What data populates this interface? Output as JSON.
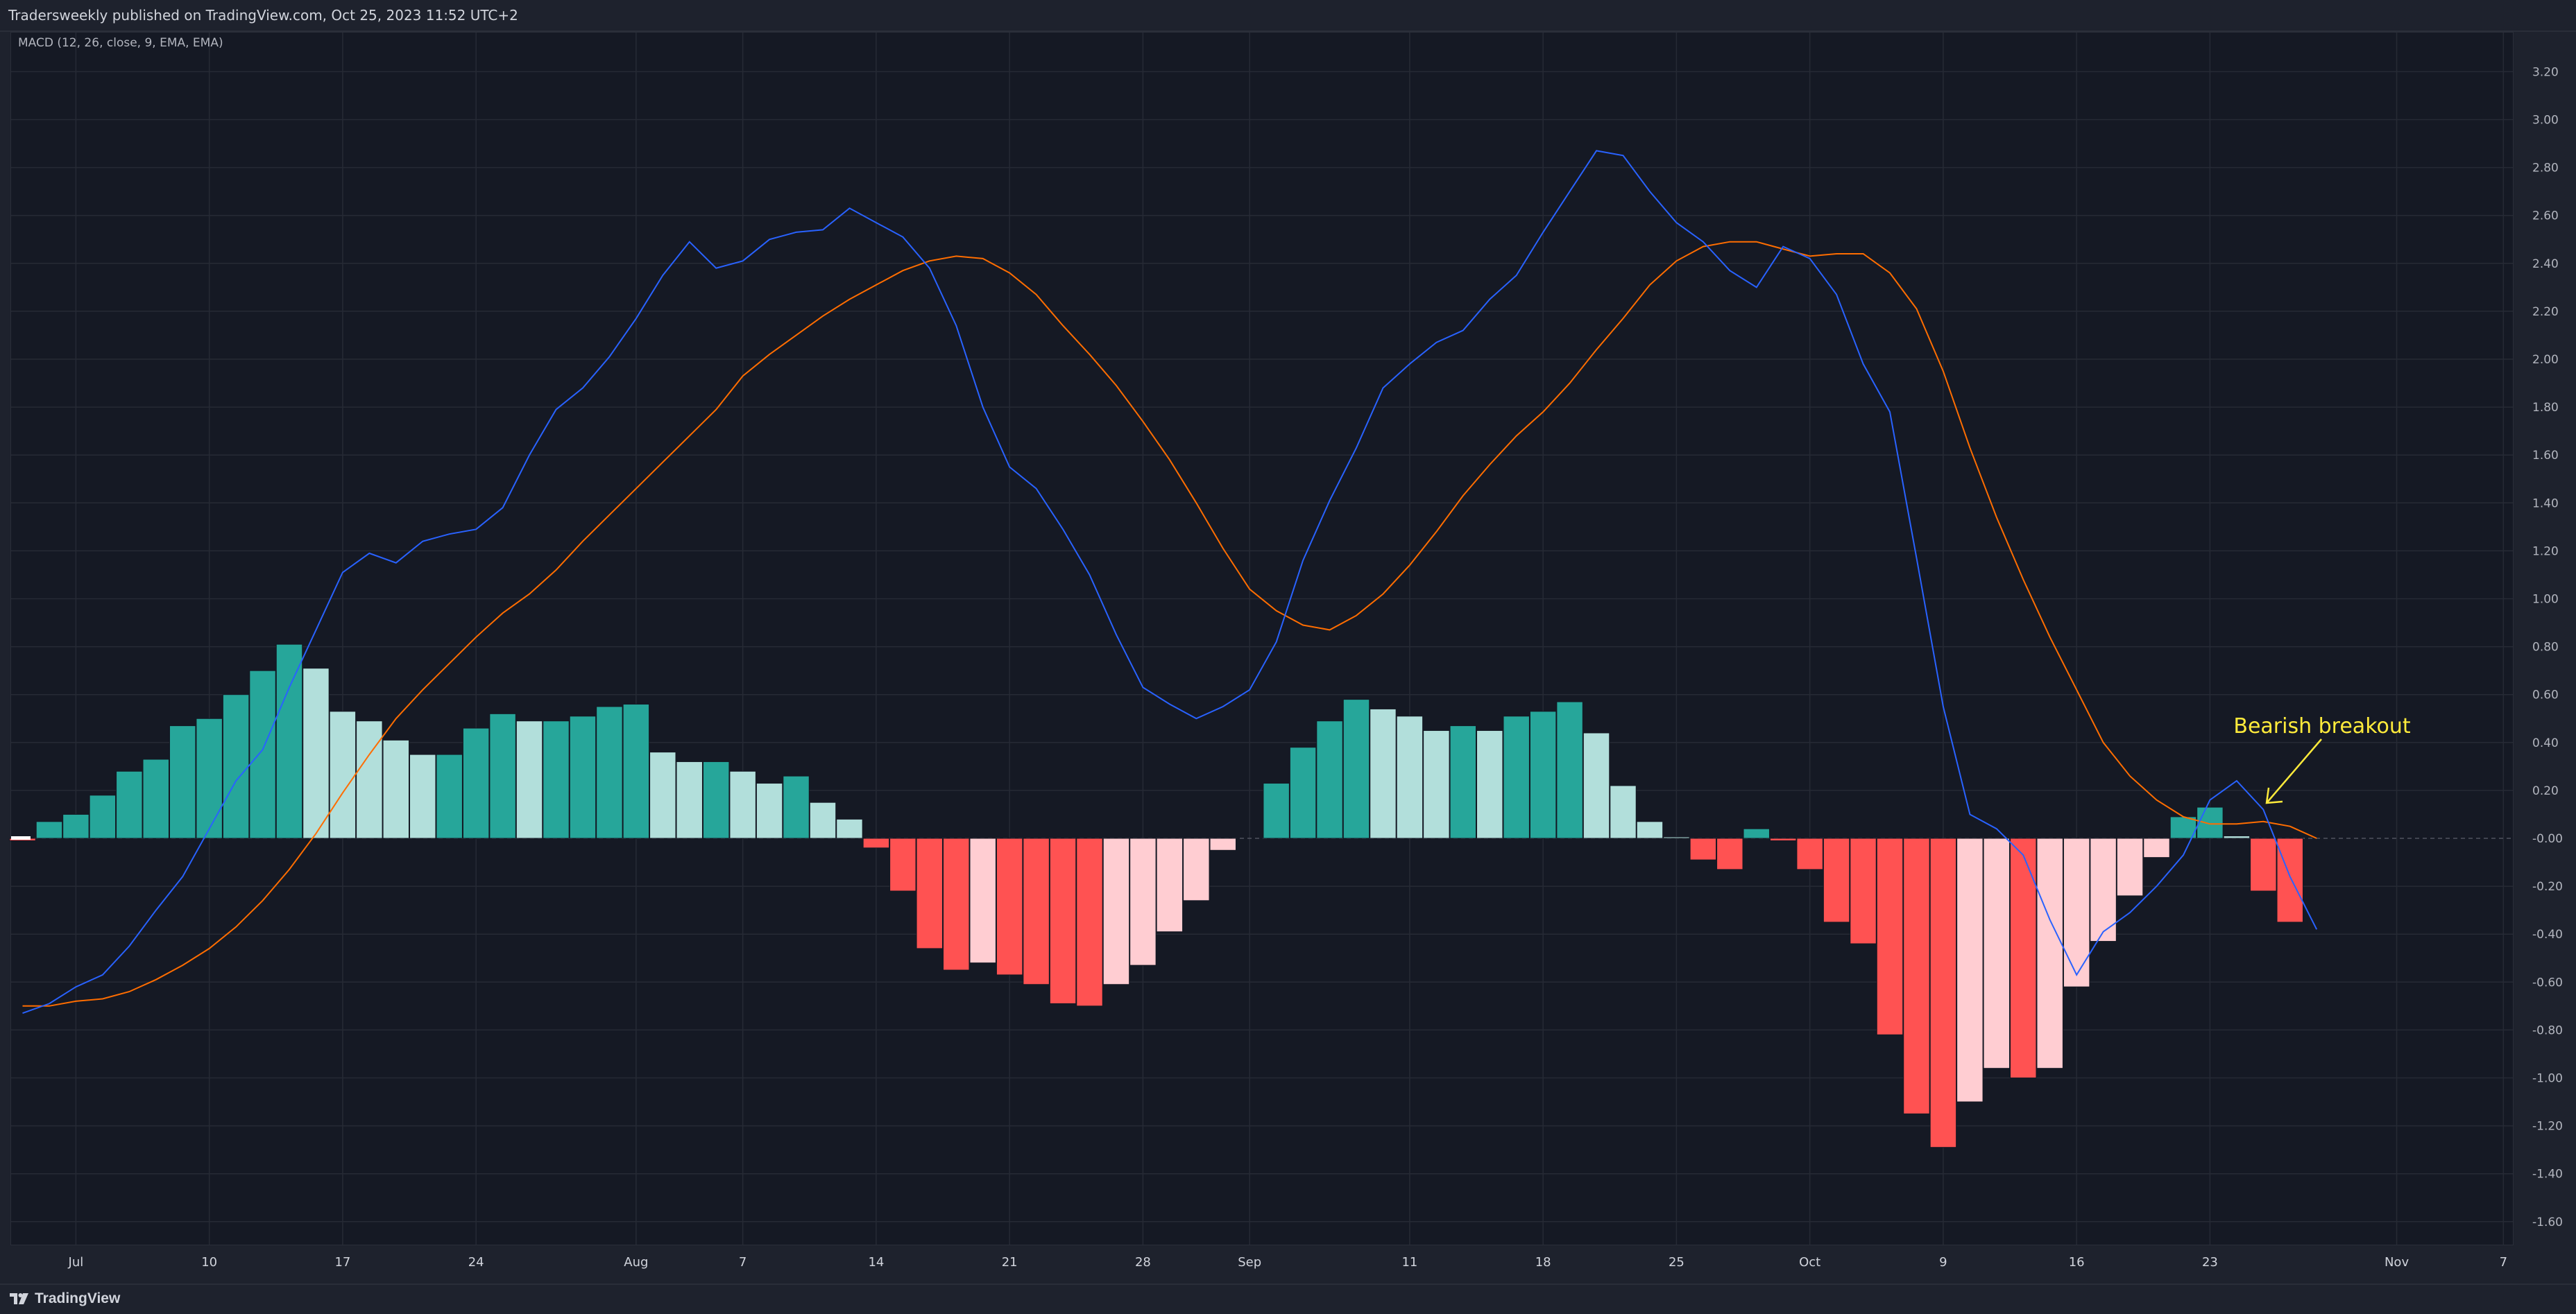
{
  "header": {
    "publisher_text": "Tradersweekly published on TradingView.com, Oct 25, 2023 11:52 UTC+2"
  },
  "indicator": {
    "label": "MACD (12, 26, close, 9, EMA, EMA)"
  },
  "footer": {
    "brand": "TradingView",
    "logo_icon": "tradingview-logo-icon"
  },
  "annotation": {
    "text": "Bearish breakout",
    "color": "#ffeb3b",
    "arrow_icon": "arrow-icon"
  },
  "colors": {
    "background": "#151924",
    "grid": "#262a35",
    "macd_line": "#2962ff",
    "signal_line": "#ff6d00",
    "hist_pos_strong": "#26a69a",
    "hist_pos_weak": "#b2dfdb",
    "hist_neg_strong": "#ff5252",
    "hist_neg_weak": "#ffcdd2",
    "zero_line": "#50535e"
  },
  "chart_data": {
    "type": "bar",
    "description_free": true,
    "x_tick_labels": [
      "Jul",
      "10",
      "17",
      "24",
      "Aug",
      "7",
      "14",
      "21",
      "28",
      "Sep",
      "11",
      "18",
      "25",
      "Oct",
      "9",
      "16",
      "23",
      "Nov",
      "7"
    ],
    "x_tick_index": [
      2,
      7,
      12,
      17,
      23,
      27,
      32,
      37,
      42,
      46,
      52,
      57,
      62,
      67,
      72,
      77,
      82,
      89,
      93
    ],
    "y_tick_labels": [
      "3.20",
      "3.00",
      "2.80",
      "2.60",
      "2.40",
      "2.20",
      "2.00",
      "1.80",
      "1.60",
      "1.40",
      "1.20",
      "1.00",
      "0.80",
      "0.60",
      "0.40",
      "0.20",
      "-0.00",
      "-0.20",
      "-0.40",
      "-0.60",
      "-0.80",
      "-1.00",
      "-1.20",
      "-1.40",
      "-1.60"
    ],
    "ylim": [
      -1.72,
      3.31
    ],
    "xlim": [
      -0.3,
      95
    ],
    "histogram": {
      "values": [
        -0.01,
        0.07,
        0.1,
        0.18,
        0.28,
        0.33,
        0.47,
        0.5,
        0.6,
        0.7,
        0.81,
        0.71,
        0.53,
        0.49,
        0.41,
        0.35,
        0.35,
        0.46,
        0.52,
        0.49,
        0.49,
        0.51,
        0.55,
        0.56,
        0.36,
        0.32,
        0.32,
        0.28,
        0.23,
        0.26,
        0.15,
        0.08,
        -0.04,
        -0.22,
        -0.46,
        -0.55,
        -0.52,
        -0.57,
        -0.61,
        -0.69,
        -0.7,
        -0.61,
        -0.53,
        -0.39,
        -0.26,
        -0.05,
        null,
        0.23,
        0.38,
        0.49,
        0.58,
        0.54,
        0.51,
        0.45,
        0.47,
        0.45,
        0.51,
        0.53,
        0.57,
        0.44,
        0.22,
        0.07,
        0.0,
        -0.09,
        -0.13,
        0.04,
        -0.01,
        -0.13,
        -0.35,
        -0.44,
        -0.82,
        -1.15,
        -1.29,
        -1.1,
        -0.96,
        -1.0,
        -0.96,
        -0.62,
        -0.43,
        -0.24,
        -0.08,
        0.09,
        0.13,
        0.01,
        -0.22,
        -0.35
      ]
    },
    "series": [
      {
        "name": "MACD",
        "values": [
          -0.73,
          -0.69,
          -0.62,
          -0.57,
          -0.45,
          -0.3,
          -0.16,
          0.04,
          0.24,
          0.37,
          0.63,
          0.87,
          1.11,
          1.19,
          1.15,
          1.24,
          1.27,
          1.29,
          1.38,
          1.6,
          1.79,
          1.88,
          2.01,
          2.17,
          2.35,
          2.49,
          2.38,
          2.41,
          2.5,
          2.53,
          2.54,
          2.63,
          2.57,
          2.51,
          2.38,
          2.14,
          1.8,
          1.55,
          1.46,
          1.29,
          1.1,
          0.85,
          0.63,
          0.56,
          0.5,
          0.55,
          0.62,
          0.82,
          1.16,
          1.41,
          1.63,
          1.88,
          1.98,
          2.07,
          2.12,
          2.25,
          2.35,
          2.53,
          2.7,
          2.87,
          2.85,
          2.7,
          2.57,
          2.49,
          2.37,
          2.3,
          2.47,
          2.42,
          2.27,
          1.98,
          1.78,
          1.17,
          0.55,
          0.1,
          0.04,
          -0.07,
          -0.34,
          -0.57,
          -0.39,
          -0.31,
          -0.2,
          -0.07,
          0.16,
          0.24,
          0.12,
          -0.16,
          -0.38
        ]
      },
      {
        "name": "Signal",
        "values": [
          -0.7,
          -0.7,
          -0.68,
          -0.67,
          -0.64,
          -0.59,
          -0.53,
          -0.46,
          -0.37,
          -0.26,
          -0.13,
          0.02,
          0.19,
          0.35,
          0.5,
          0.62,
          0.73,
          0.84,
          0.94,
          1.02,
          1.12,
          1.24,
          1.35,
          1.46,
          1.57,
          1.68,
          1.79,
          1.93,
          2.02,
          2.1,
          2.18,
          2.25,
          2.31,
          2.37,
          2.41,
          2.43,
          2.42,
          2.36,
          2.27,
          2.14,
          2.02,
          1.89,
          1.74,
          1.58,
          1.4,
          1.21,
          1.04,
          0.95,
          0.89,
          0.87,
          0.93,
          1.02,
          1.14,
          1.28,
          1.43,
          1.56,
          1.68,
          1.78,
          1.9,
          2.04,
          2.17,
          2.31,
          2.41,
          2.47,
          2.49,
          2.49,
          2.46,
          2.43,
          2.44,
          2.44,
          2.36,
          2.21,
          1.95,
          1.63,
          1.34,
          1.08,
          0.84,
          0.62,
          0.4,
          0.26,
          0.16,
          0.09,
          0.06,
          0.06,
          0.07,
          0.05,
          0.0
        ]
      }
    ],
    "grid": true,
    "title": "",
    "xlabel": "",
    "ylabel": ""
  }
}
